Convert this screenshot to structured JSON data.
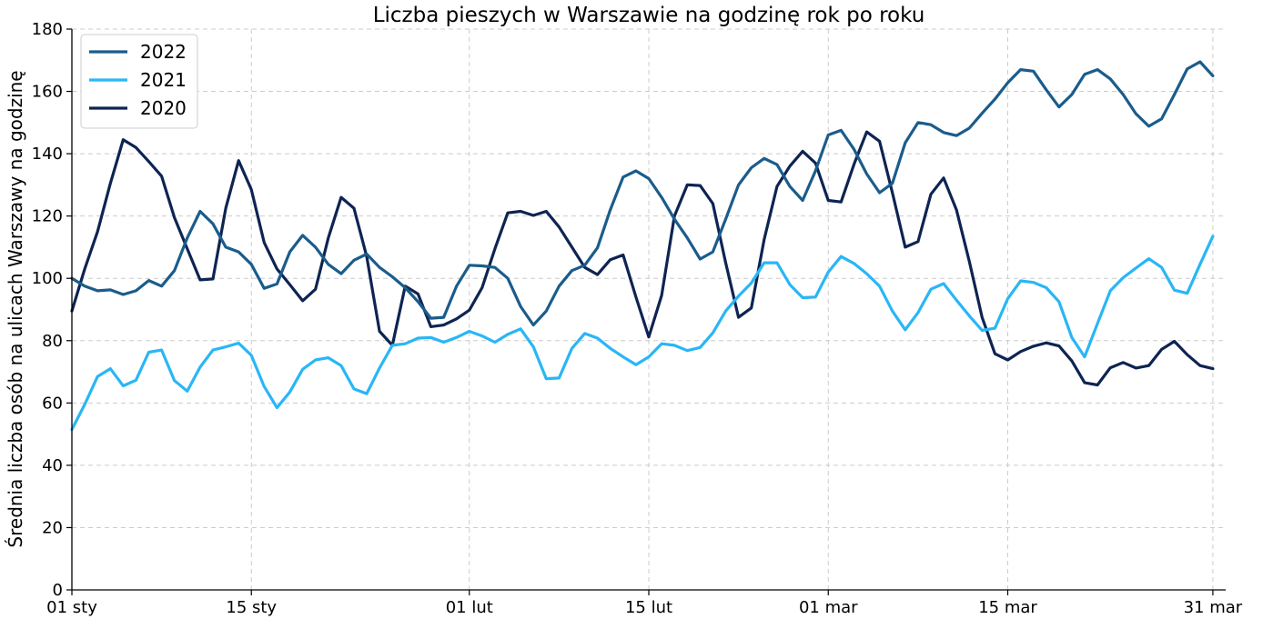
{
  "chart_data": {
    "type": "line",
    "title": "Liczba pieszych w Warszawie na godzinę rok po roku",
    "xlabel": "",
    "ylabel": "Średnia liczba osób na ulicach Warszawy na godzinę",
    "ylim": [
      0,
      180
    ],
    "yticks": [
      0,
      20,
      40,
      60,
      80,
      100,
      120,
      140,
      160,
      180
    ],
    "xlim": [
      0,
      90
    ],
    "xticks": [
      {
        "x": 0,
        "label": "01 sty"
      },
      {
        "x": 14,
        "label": "15 sty"
      },
      {
        "x": 31,
        "label": "01 lut"
      },
      {
        "x": 45,
        "label": "15 lut"
      },
      {
        "x": 59,
        "label": "01 mar"
      },
      {
        "x": 73,
        "label": "15 mar"
      },
      {
        "x": 89,
        "label": "31 mar"
      }
    ],
    "grid": true,
    "legend_position": "top-left",
    "series": [
      {
        "name": "2022",
        "color": "#1a5c8c",
        "values": [
          100,
          97.5,
          96,
          96.3,
          94.8,
          96,
          99.3,
          97.5,
          102.5,
          113,
          121.5,
          117.5,
          110,
          108.5,
          104.5,
          96.8,
          98.2,
          108.5,
          113.8,
          110,
          104.5,
          101.5,
          105.8,
          107.8,
          103.5,
          100.5,
          97,
          92.5,
          87.2,
          87.5,
          97.5,
          104.2,
          104,
          103.5,
          100,
          91,
          85,
          89.5,
          97.5,
          102.5,
          104.2,
          109.8,
          122,
          132.5,
          134.5,
          132,
          126,
          119,
          113,
          106.2,
          108.5,
          119,
          130,
          135.5,
          138.5,
          136.5,
          129.5,
          125,
          134.5,
          146,
          147.5,
          141.5,
          133.5,
          127.5,
          130.5,
          143.5,
          150,
          149.3,
          146.8,
          145.8,
          148.2,
          153,
          157.5,
          162.8,
          167,
          166.5,
          160.5,
          155,
          159,
          165.5,
          167,
          164,
          159,
          152.8,
          148.8,
          151.2,
          159,
          167.2,
          169.5,
          165
        ]
      },
      {
        "name": "2021",
        "color": "#29b6f6",
        "values": [
          51.5,
          59.5,
          68.5,
          71,
          65.5,
          67.3,
          76.3,
          77,
          67.2,
          63.8,
          71.5,
          77,
          78,
          79.2,
          75.3,
          65.3,
          58.5,
          63.5,
          70.8,
          73.8,
          74.5,
          72,
          64.5,
          63,
          71.2,
          78.5,
          79,
          80.8,
          81,
          79.5,
          81,
          83,
          81.5,
          79.5,
          82,
          83.8,
          78,
          67.8,
          68,
          77.5,
          82.3,
          80.8,
          77.5,
          74.8,
          72.3,
          74.8,
          79,
          78.5,
          76.8,
          77.8,
          82.5,
          89.5,
          94.3,
          98.5,
          105,
          105,
          98,
          93.8,
          94,
          102,
          107,
          104.8,
          101.5,
          97.5,
          89.5,
          83.5,
          89,
          96.5,
          98.3,
          93,
          88,
          83.3,
          84,
          93.5,
          99.2,
          98.7,
          97,
          92.5,
          81,
          74.8,
          85.5,
          96,
          100.2,
          103.3,
          106.3,
          103.5,
          96.2,
          95.2,
          104.5,
          113.5
        ]
      },
      {
        "name": "2020",
        "color": "#0e2452",
        "values": [
          89.5,
          103,
          115,
          130.5,
          144.5,
          142,
          137.5,
          132.8,
          119.5,
          109.5,
          99.5,
          99.8,
          122.5,
          137.8,
          128.5,
          111.5,
          103,
          98,
          92.8,
          96.5,
          113,
          126,
          122.5,
          107,
          83,
          78.5,
          97.5,
          95,
          84.5,
          85,
          87,
          89.8,
          97,
          109.5,
          121,
          121.5,
          120.2,
          121.5,
          116.5,
          110,
          103.5,
          101.2,
          106,
          107.5,
          94,
          81.2,
          94.5,
          120,
          130,
          129.8,
          124,
          105,
          87.5,
          90.5,
          112.5,
          129.5,
          136,
          140.8,
          137,
          125,
          124.5,
          136.5,
          147,
          144,
          127.5,
          110,
          111.8,
          127,
          132.2,
          122,
          105.5,
          87.5,
          75.8,
          73.8,
          76.5,
          78.2,
          79.3,
          78.3,
          73.5,
          66.5,
          65.8,
          71.3,
          73,
          71.2,
          72,
          77.2,
          79.8,
          75.5,
          72,
          71
        ]
      }
    ]
  }
}
